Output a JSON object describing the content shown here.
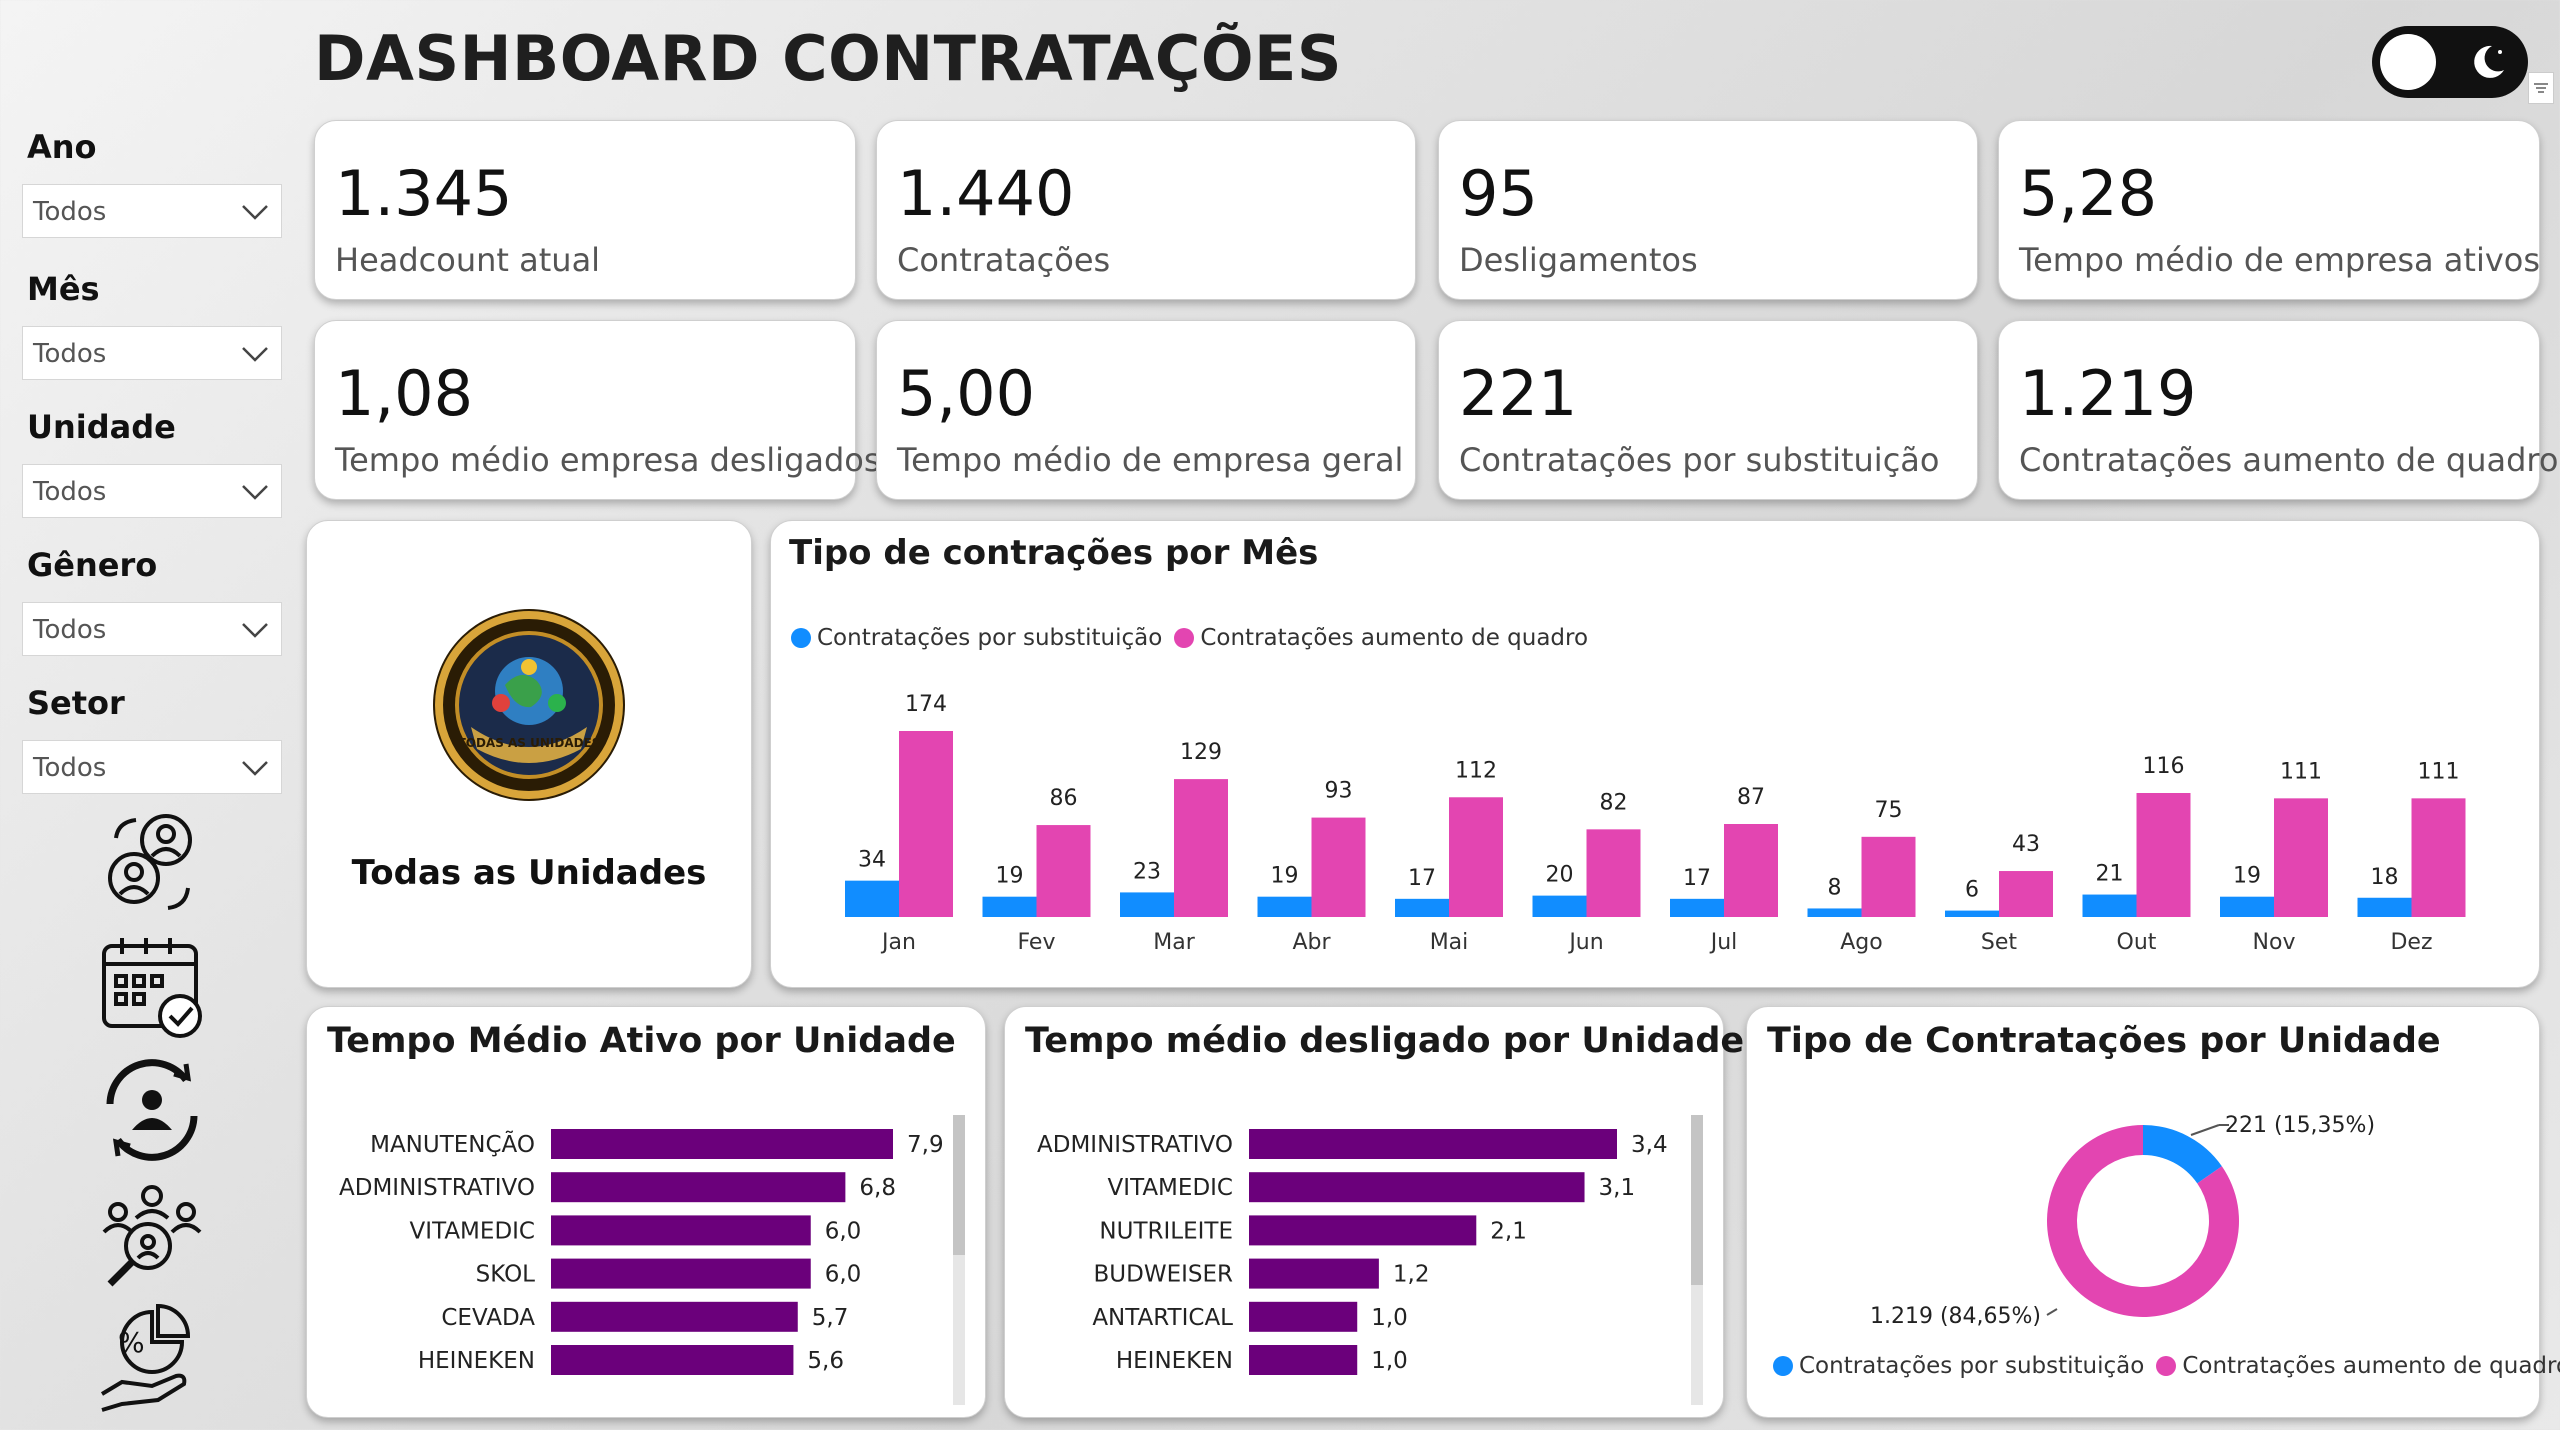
{
  "header": {
    "title": "DASHBOARD CONTRATAÇÕES"
  },
  "filters": [
    {
      "label": "Ano",
      "value": "Todos"
    },
    {
      "label": "Mês",
      "value": "Todos"
    },
    {
      "label": "Unidade",
      "value": "Todos"
    },
    {
      "label": "Gênero",
      "value": "Todos"
    },
    {
      "label": "Setor",
      "value": "Todos"
    }
  ],
  "nav_icons": [
    "people-cycle-icon",
    "calendar-check-icon",
    "user-refresh-icon",
    "team-search-icon",
    "percent-hand-icon"
  ],
  "kpis": [
    {
      "value": "1.345",
      "label": "Headcount atual"
    },
    {
      "value": "1.440",
      "label": "Contratações"
    },
    {
      "value": "95",
      "label": "Desligamentos"
    },
    {
      "value": "5,28",
      "label": "Tempo médio de empresa ativos"
    },
    {
      "value": "1,08",
      "label": "Tempo médio empresa desligados"
    },
    {
      "value": "5,00",
      "label": "Tempo médio de empresa geral"
    },
    {
      "value": "221",
      "label": "Contratações por substituição"
    },
    {
      "value": "1.219",
      "label": "Contratações aumento de quadro"
    }
  ],
  "unit_panel": {
    "logo_text": "TODAS AS UNIDADES",
    "caption": "Todas as Unidades"
  },
  "colors": {
    "blue": "#118dff",
    "pink": "#e345b1",
    "purple": "#6b007b"
  },
  "chart_data": [
    {
      "type": "bar",
      "title": "Tipo de contrações por Mês",
      "categories": [
        "Jan",
        "Fev",
        "Mar",
        "Abr",
        "Mai",
        "Jun",
        "Jul",
        "Ago",
        "Set",
        "Out",
        "Nov",
        "Dez"
      ],
      "series": [
        {
          "name": "Contratações por substituição",
          "values": [
            34,
            19,
            23,
            19,
            17,
            20,
            17,
            8,
            6,
            21,
            19,
            18
          ]
        },
        {
          "name": "Contratações aumento de quadro",
          "values": [
            174,
            86,
            129,
            93,
            112,
            82,
            87,
            75,
            43,
            116,
            111,
            111
          ]
        }
      ],
      "legend": "top-left",
      "grid": false
    },
    {
      "type": "bar",
      "orientation": "horizontal",
      "title": "Tempo Médio Ativo por Unidade",
      "categories": [
        "MANUTENÇÃO",
        "ADMINISTRATIVO",
        "VITAMEDIC",
        "SKOL",
        "CEVADA",
        "HEINEKEN"
      ],
      "values": [
        7.9,
        6.8,
        6.0,
        6.0,
        5.7,
        5.6
      ],
      "labels": [
        "7,9",
        "6,8",
        "6,0",
        "6,0",
        "5,7",
        "5,6"
      ]
    },
    {
      "type": "bar",
      "orientation": "horizontal",
      "title": "Tempo médio desligado por Unidade",
      "categories": [
        "ADMINISTRATIVO",
        "VITAMEDIC",
        "NUTRILEITE",
        "BUDWEISER",
        "ANTARTICAL",
        "HEINEKEN"
      ],
      "values": [
        3.4,
        3.1,
        2.1,
        1.2,
        1.0,
        1.0
      ],
      "labels": [
        "3,4",
        "3,1",
        "2,1",
        "1,2",
        "1,0",
        "1,0"
      ]
    },
    {
      "type": "pie",
      "variant": "donut",
      "title": "Tipo de Contratações por Unidade",
      "slices": [
        {
          "name": "Contratações por substituição",
          "value": 221,
          "label": "221 (15,35%)"
        },
        {
          "name": "Contratações aumento de quadro",
          "value": 1219,
          "label": "1.219 (84,65%)"
        }
      ],
      "legend": "bottom"
    }
  ]
}
